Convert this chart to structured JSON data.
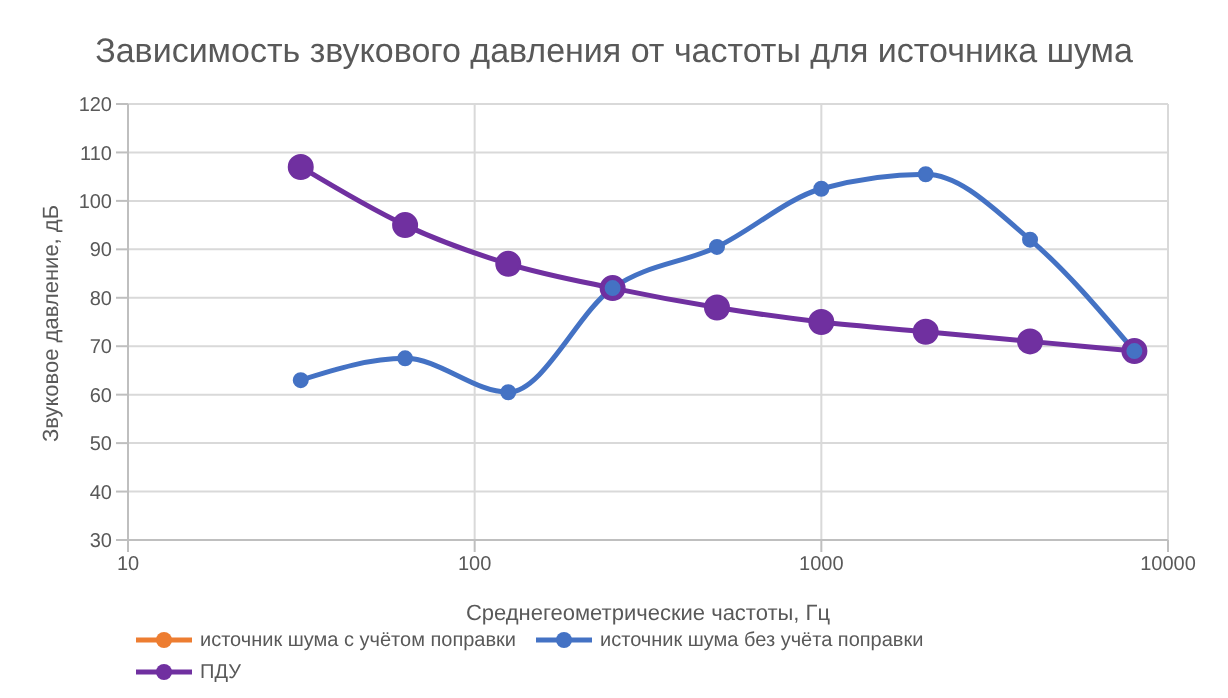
{
  "chart_data": {
    "type": "line",
    "title": "Зависимость звукового давления от частоты для источника шума",
    "xlabel": "Среднегеометрические частоты, Гц",
    "ylabel": "Звуковое давление, дБ",
    "x": [
      31.5,
      63,
      125,
      250,
      500,
      1000,
      2000,
      4000,
      8000
    ],
    "series": [
      {
        "name": "источник шума с учётом поправки",
        "color": "#ed7d31",
        "values": [
          null,
          null,
          null,
          null,
          null,
          null,
          null,
          null,
          null
        ]
      },
      {
        "name": "источник шума без учёта поправки",
        "color": "#4472c4",
        "values": [
          63,
          67.5,
          60.5,
          82,
          90.5,
          102.5,
          105.5,
          92,
          69
        ]
      },
      {
        "name": "ПДУ",
        "color": "#7030a0",
        "values": [
          107,
          95,
          87,
          82,
          78,
          75,
          73,
          71,
          69
        ]
      }
    ],
    "log": "x",
    "xlim": [
      10,
      10000
    ],
    "xticks": [
      10,
      100,
      1000,
      10000
    ],
    "ylim": [
      30,
      120
    ],
    "yticks": [
      30,
      40,
      50,
      60,
      70,
      80,
      90,
      100,
      110,
      120
    ],
    "grid": true,
    "legend": "bottom",
    "marker": "circle",
    "line_style": "solid"
  }
}
